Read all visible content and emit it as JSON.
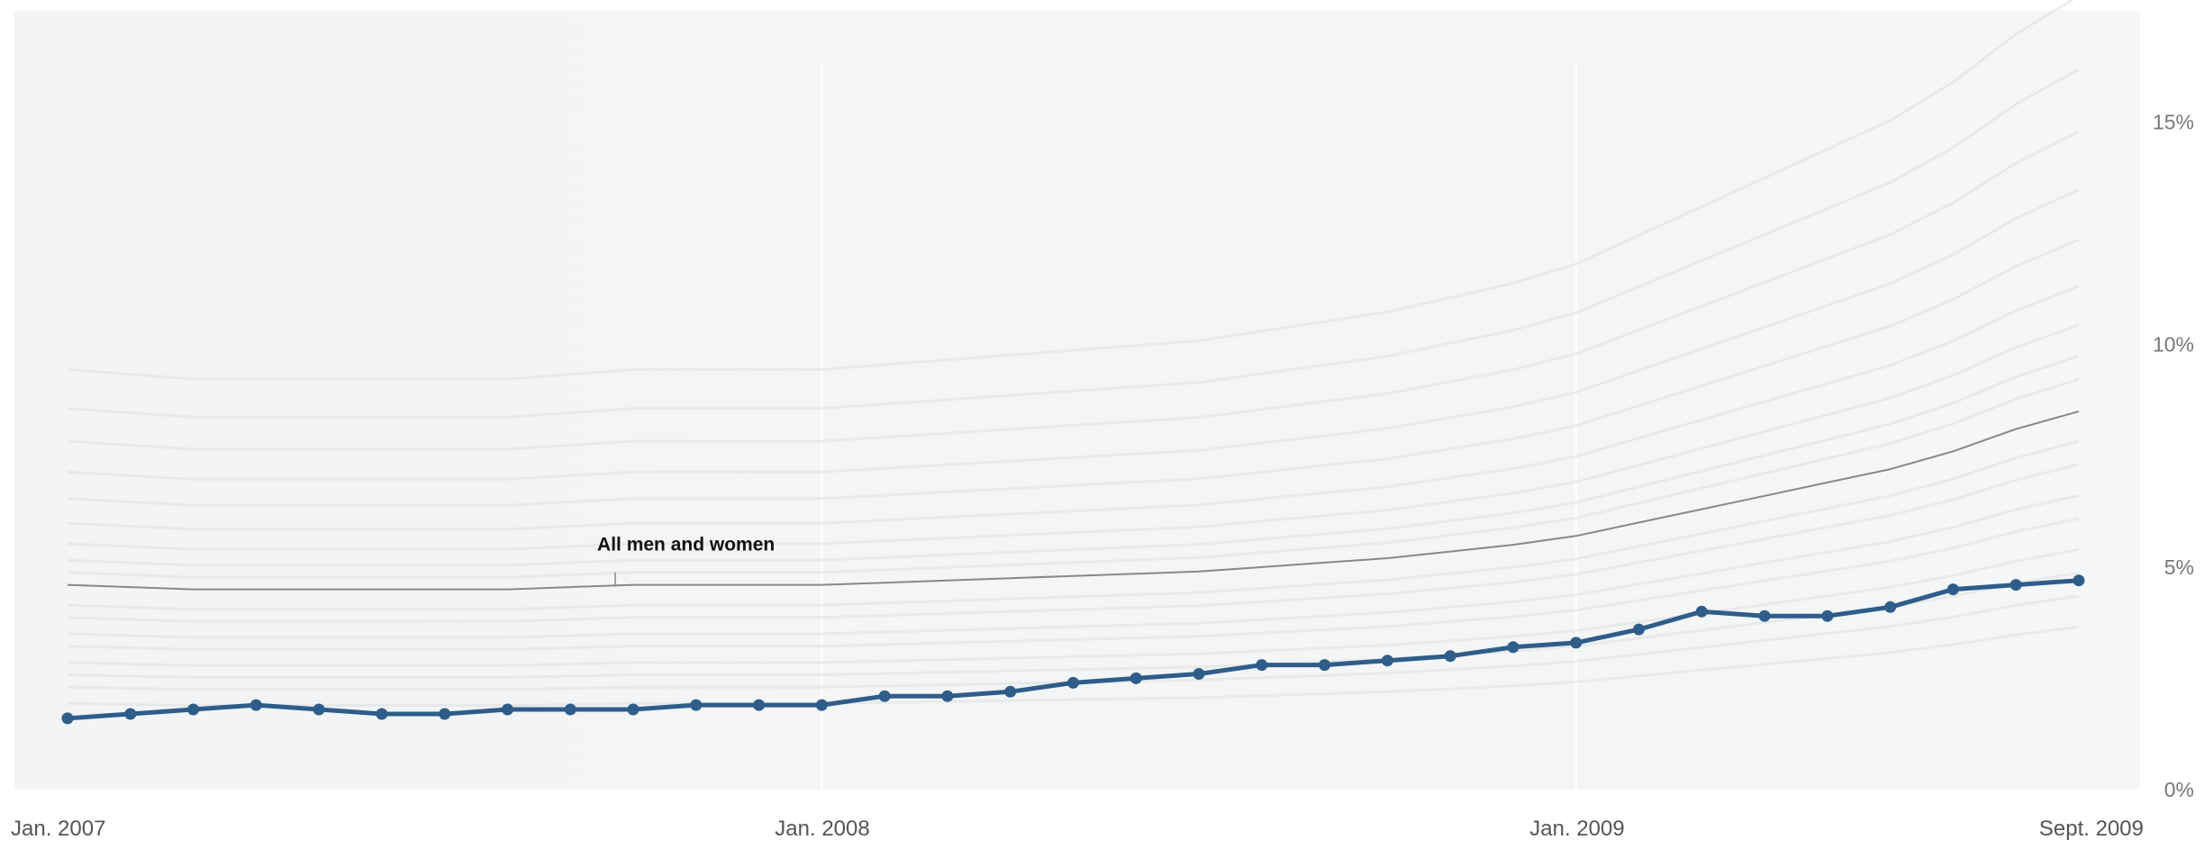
{
  "chart_data": {
    "type": "line",
    "title": "",
    "xlabel": "",
    "ylabel": "",
    "x_tick_labels": [
      "Jan. 2007",
      "Jan. 2008",
      "Jan. 2009",
      "Sept. 2009"
    ],
    "y_tick_labels": [
      "0%",
      "5%",
      "10%",
      "15%"
    ],
    "ylim": [
      0,
      17.5
    ],
    "y_ticks": [
      0,
      5,
      10,
      15
    ],
    "grid": true,
    "legend": "none",
    "annotations": [
      {
        "text": "All men and women",
        "target_series": "All men and women",
        "x": "2007-10"
      }
    ],
    "x": [
      "2007-01",
      "2007-02",
      "2007-03",
      "2007-04",
      "2007-05",
      "2007-06",
      "2007-07",
      "2007-08",
      "2007-09",
      "2007-10",
      "2007-11",
      "2007-12",
      "2008-01",
      "2008-02",
      "2008-03",
      "2008-04",
      "2008-05",
      "2008-06",
      "2008-07",
      "2008-08",
      "2008-09",
      "2008-10",
      "2008-11",
      "2008-12",
      "2009-01",
      "2009-02",
      "2009-03",
      "2009-04",
      "2009-05",
      "2009-06",
      "2009-07",
      "2009-08",
      "2009-09"
    ],
    "series": [
      {
        "name": "All men and women",
        "color": "#888888",
        "style": "thin-line",
        "values": [
          4.6,
          4.55,
          4.5,
          4.5,
          4.5,
          4.5,
          4.5,
          4.5,
          4.55,
          4.6,
          4.6,
          4.6,
          4.6,
          4.65,
          4.7,
          4.75,
          4.8,
          4.85,
          4.9,
          5.0,
          5.1,
          5.2,
          5.35,
          5.5,
          5.7,
          6.0,
          6.3,
          6.6,
          6.9,
          7.2,
          7.6,
          8.1,
          8.5
        ]
      },
      {
        "name": "",
        "color": "#2e5d8a",
        "style": "line-with-markers",
        "values": [
          1.6,
          1.7,
          1.8,
          1.9,
          1.8,
          1.7,
          1.7,
          1.8,
          1.8,
          1.8,
          1.9,
          1.9,
          1.9,
          2.1,
          2.1,
          2.2,
          2.4,
          2.5,
          2.6,
          2.8,
          2.8,
          2.9,
          3.0,
          3.2,
          3.3,
          3.6,
          4.0,
          3.9,
          3.9,
          4.1,
          4.5,
          4.6,
          4.7
        ]
      }
    ],
    "background_series_color": "#dcdee0"
  }
}
